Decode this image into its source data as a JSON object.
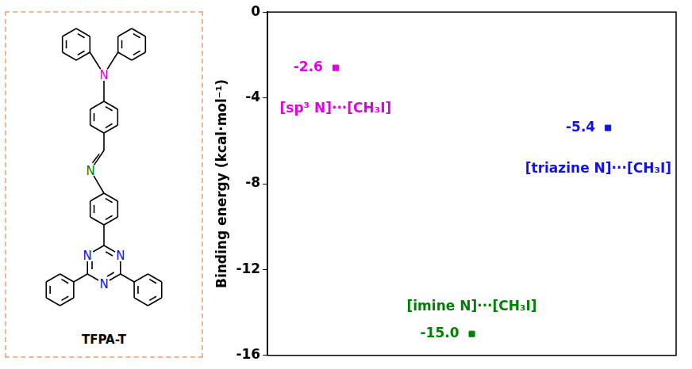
{
  "chart_data": {
    "type": "scatter",
    "y_label": "Binding energy (kcal·mol⁻¹)",
    "categories": [
      "[sp³ N]···[CH₃I]",
      "[imine N]···[CH₃I]",
      "[triazine N]···[CH₃I]"
    ],
    "values": [
      -2.6,
      -15.0,
      -5.4
    ],
    "value_labels": [
      "-2.6",
      "-15.0",
      "-5.4"
    ],
    "colors": [
      "#e000e0",
      "#008000",
      "#1010f0"
    ],
    "marker": "square",
    "ylim": [
      -16,
      0
    ],
    "yticks": [
      -16,
      -12,
      -8,
      -4,
      0
    ],
    "grid": false,
    "data_labels": true,
    "tick_labels": "y"
  },
  "structure": {
    "label": "TFPA-T",
    "atom": "N"
  }
}
